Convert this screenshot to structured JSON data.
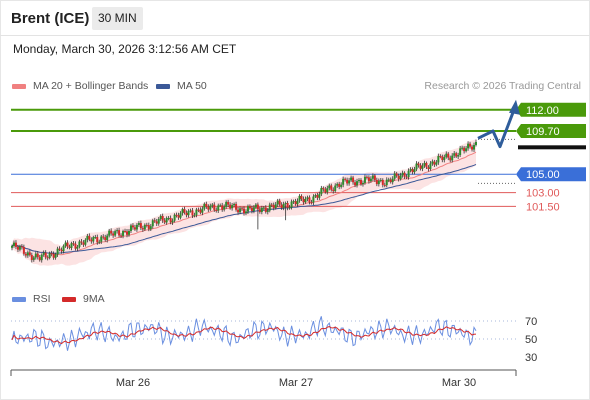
{
  "header": {
    "instrument": "Brent (ICE)",
    "timeframe": "30 MIN",
    "datetime": "Monday, March 30, 2026 3:12:56 AM CET"
  },
  "legend": {
    "ma20": "MA 20 + Bollinger Bands",
    "ma50": "MA 50",
    "credit": "Research © 2026 Trading Central",
    "rsi": "RSI",
    "rsi_ma": "9MA"
  },
  "colors": {
    "up_candle": "#2e8b2e",
    "down_candle": "#d42a2a",
    "ma20": "#f08080",
    "bollinger_fill": "#fbdada",
    "ma50": "#3b5998",
    "resistance": "#4a9a0a",
    "pivot": "#3a6fd8",
    "support": "#e05a5a",
    "forecast_arrow": "#2f5d9b",
    "rsi_line": "#6a8fe0",
    "rsi_ma_line": "#d42a2a"
  },
  "chart_data": [
    {
      "type": "candlestick",
      "title": "Brent (ICE) 30 MIN",
      "x_labels": [
        "Mar 26",
        "Mar 27",
        "Mar 30"
      ],
      "ylim": [
        93.5,
        113.5
      ],
      "key_levels": [
        {
          "label": "112.00",
          "value": 112.0,
          "kind": "resistance"
        },
        {
          "label": "109.70",
          "value": 109.7,
          "kind": "resistance"
        },
        {
          "label": "105.00",
          "value": 105.0,
          "kind": "pivot"
        },
        {
          "label": "103.00",
          "value": 103.0,
          "kind": "support"
        },
        {
          "label": "101.50",
          "value": 101.5,
          "kind": "support"
        }
      ],
      "last_price": 108.9,
      "forecast_path": [
        108.9,
        109.7,
        108.0,
        112.0
      ],
      "series": [
        {
          "name": "MA 20 + Bollinger Bands",
          "kind": "ma_bands"
        },
        {
          "name": "MA 50",
          "kind": "ma"
        }
      ]
    },
    {
      "type": "line",
      "series": [
        {
          "name": "RSI"
        },
        {
          "name": "9MA"
        }
      ],
      "y_ticks": [
        70,
        50,
        30
      ],
      "ylim": [
        20,
        80
      ]
    }
  ]
}
